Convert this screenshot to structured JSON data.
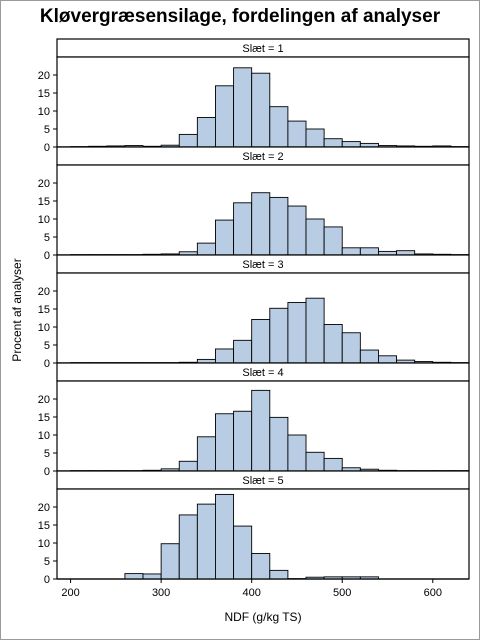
{
  "chart_data": {
    "type": "bar",
    "title": "Kløvergræsensilage, fordelingen af analyser",
    "xlabel": "NDF (g/kg TS)",
    "ylabel": "Procent af analyser",
    "bin_width": 20,
    "bin_starts": [
      200,
      220,
      240,
      260,
      280,
      300,
      320,
      340,
      360,
      380,
      400,
      420,
      440,
      460,
      480,
      500,
      520,
      540,
      560,
      580,
      600,
      620
    ],
    "xlim": [
      185,
      640
    ],
    "ylim": [
      0,
      25
    ],
    "x_ticks": [
      200,
      300,
      400,
      500,
      600
    ],
    "y_ticks": [
      0,
      5,
      10,
      15,
      20
    ],
    "bar_color": "#b8cce4",
    "panel_label_prefix": "Slæt = ",
    "panels": [
      {
        "label": "Slæt = 1",
        "values": [
          0.1,
          0.2,
          0.3,
          0.4,
          0.2,
          0.5,
          3.5,
          8.2,
          17.0,
          22.0,
          20.5,
          11.2,
          7.2,
          5.0,
          2.3,
          1.5,
          1.0,
          0.4,
          0.3,
          0.2,
          0.3,
          0.1
        ]
      },
      {
        "label": "Slæt = 2",
        "values": [
          0.1,
          0.1,
          0.1,
          0.1,
          0.2,
          0.3,
          0.9,
          3.3,
          9.7,
          14.5,
          17.3,
          16.0,
          13.6,
          10.0,
          7.8,
          2.0,
          2.0,
          1.0,
          1.2,
          0.3,
          0.2,
          0.1
        ]
      },
      {
        "label": "Slæt = 3",
        "values": [
          0.1,
          0.1,
          0.1,
          0.1,
          0.1,
          0.1,
          0.2,
          1.0,
          3.9,
          6.3,
          12.1,
          15.2,
          16.8,
          18.0,
          10.7,
          8.4,
          3.6,
          2.0,
          0.8,
          0.4,
          0.2,
          0.1
        ]
      },
      {
        "label": "Slæt = 4",
        "values": [
          0.1,
          0.1,
          0.1,
          0.1,
          0.2,
          0.6,
          2.7,
          9.5,
          15.9,
          16.6,
          22.4,
          14.9,
          10.0,
          5.2,
          3.5,
          0.9,
          0.5,
          0.2,
          0.1,
          0.1,
          0.1,
          0.1
        ]
      },
      {
        "label": "Slæt = 5",
        "values": [
          0.0,
          0.0,
          0.0,
          1.5,
          1.4,
          9.8,
          17.8,
          20.8,
          23.5,
          14.7,
          7.1,
          2.4,
          0.1,
          0.5,
          0.6,
          0.6,
          0.6,
          0.0,
          0.0,
          0.0,
          0.0,
          0.0
        ]
      }
    ]
  }
}
